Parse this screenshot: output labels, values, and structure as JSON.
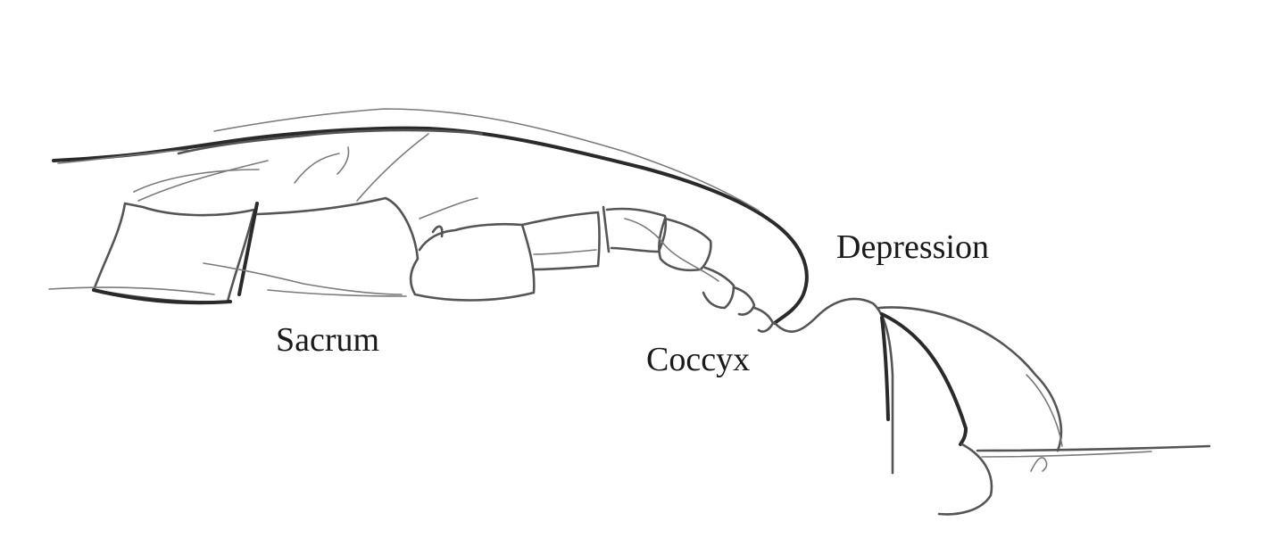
{
  "labels": {
    "depression": "Depression",
    "sacrum": "Sacrum",
    "coccyx": "Coccyx"
  },
  "colors": {
    "ink": "#2a2a2a",
    "background": "#ffffff"
  }
}
